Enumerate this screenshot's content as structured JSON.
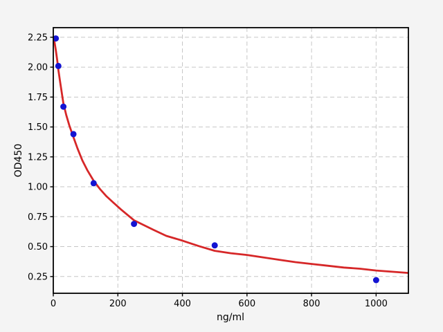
{
  "chart_data": {
    "type": "scatter",
    "title": "",
    "xlabel": "ng/ml",
    "ylabel": "OD450",
    "x": [
      7.8,
      15.6,
      31.25,
      62.5,
      125,
      250,
      500,
      1000
    ],
    "y": [
      2.24,
      2.01,
      1.67,
      1.44,
      1.03,
      0.69,
      0.51,
      0.22
    ],
    "series": [
      {
        "name": "standard-points",
        "type": "scatter",
        "marker": "circle",
        "color": "#1414d2",
        "points": [
          [
            7.8,
            2.24
          ],
          [
            15.6,
            2.01
          ],
          [
            31.25,
            1.67
          ],
          [
            62.5,
            1.44
          ],
          [
            125,
            1.03
          ],
          [
            250,
            0.69
          ],
          [
            500,
            0.51
          ],
          [
            1000,
            0.22
          ]
        ]
      },
      {
        "name": "fit-curve",
        "type": "line",
        "color": "#d62728",
        "points": [
          [
            1,
            2.26
          ],
          [
            3,
            2.22
          ],
          [
            5,
            2.19
          ],
          [
            8,
            2.14
          ],
          [
            12,
            2.06
          ],
          [
            16,
            1.97
          ],
          [
            22,
            1.86
          ],
          [
            31,
            1.7
          ],
          [
            40,
            1.6
          ],
          [
            50,
            1.51
          ],
          [
            63,
            1.41
          ],
          [
            75,
            1.32
          ],
          [
            90,
            1.22
          ],
          [
            105,
            1.14
          ],
          [
            125,
            1.05
          ],
          [
            145,
            0.98
          ],
          [
            165,
            0.92
          ],
          [
            185,
            0.87
          ],
          [
            210,
            0.81
          ],
          [
            250,
            0.72
          ],
          [
            280,
            0.68
          ],
          [
            310,
            0.64
          ],
          [
            350,
            0.59
          ],
          [
            400,
            0.55
          ],
          [
            450,
            0.505
          ],
          [
            500,
            0.465
          ],
          [
            550,
            0.445
          ],
          [
            600,
            0.43
          ],
          [
            650,
            0.41
          ],
          [
            700,
            0.39
          ],
          [
            750,
            0.37
          ],
          [
            800,
            0.355
          ],
          [
            850,
            0.34
          ],
          [
            900,
            0.325
          ],
          [
            950,
            0.315
          ],
          [
            1000,
            0.3
          ],
          [
            1050,
            0.29
          ],
          [
            1100,
            0.28
          ]
        ]
      }
    ],
    "xlim": [
      0,
      1100
    ],
    "ylim": [
      0.11,
      2.33
    ],
    "x_ticks": [
      0,
      200,
      400,
      600,
      800,
      1000
    ],
    "x_tick_labels": [
      "0",
      "200",
      "400",
      "600",
      "800",
      "1000"
    ],
    "y_ticks": [
      0.25,
      0.5,
      0.75,
      1.0,
      1.25,
      1.5,
      1.75,
      2.0,
      2.25
    ],
    "y_tick_labels": [
      "0.25",
      "0.50",
      "0.75",
      "1.00",
      "1.25",
      "1.50",
      "1.75",
      "2.00",
      "2.25"
    ],
    "grid": {
      "visible": true,
      "style": "dashed",
      "color": "#c6c6c6"
    },
    "legend": {
      "visible": false
    },
    "colors": {
      "figure_bg": "#f4f4f4",
      "plot_bg": "#ffffff",
      "spine": "#000000",
      "text": "#000000",
      "marker": "#1414d2",
      "curve": "#d62728"
    }
  }
}
